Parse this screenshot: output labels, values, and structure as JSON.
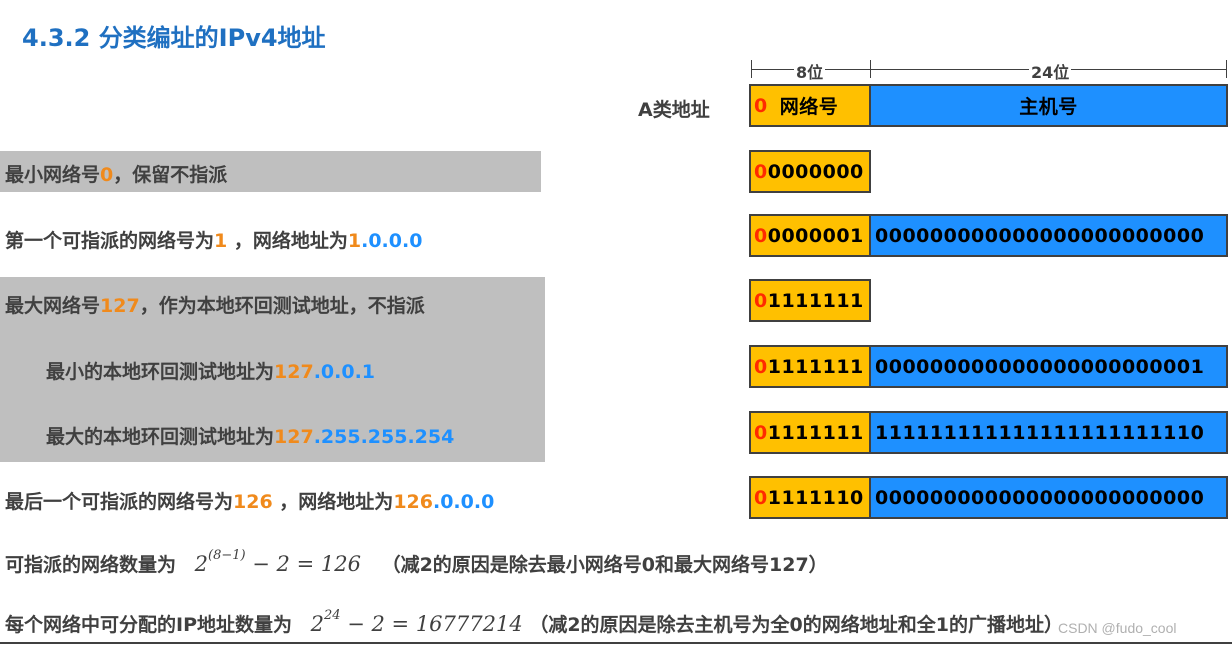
{
  "title": "4.3.2 分类编址的IPv4地址",
  "diagram": {
    "class_label": "A类地址",
    "width_net": "8位",
    "width_host": "24位",
    "header_net_zero": "0",
    "header_net_label": "网络号",
    "header_host_label": "主机号"
  },
  "rows": [
    {
      "net_first": "0",
      "net_rest": "0000000",
      "host": ""
    },
    {
      "net_first": "0",
      "net_rest": "0000001",
      "host": "000000000000000000000000"
    },
    {
      "net_first": "0",
      "net_rest": "1111111",
      "host": ""
    },
    {
      "net_first": "0",
      "net_rest": "1111111",
      "host": "000000000000000000000001"
    },
    {
      "net_first": "0",
      "net_rest": "1111111",
      "host": "111111111111111111111110"
    },
    {
      "net_first": "0",
      "net_rest": "1111110",
      "host": "000000000000000000000000"
    }
  ],
  "lines": {
    "l1_a": "最小网络号",
    "l1_b": "0",
    "l1_c": "，保留不指派",
    "l2_a": "第一个可指派的网络号为",
    "l2_b": "1",
    "l2_c": " ，网络地址为",
    "l2_d": "1",
    "l2_e": ".0.0.0",
    "l3_a": "最大网络号",
    "l3_b": "127",
    "l3_c": "，作为本地环回测试地址，不指派",
    "l4_a": "最小的本地环回测试地址为",
    "l4_b": "127",
    "l4_c": ".0.0.1",
    "l5_a": "最大的本地环回测试地址为",
    "l5_b": "127",
    "l5_c": ".255.255.254",
    "l6_a": "最后一个可指派的网络号为",
    "l6_b": "126",
    "l6_c": " ，网络地址为",
    "l6_d": "126",
    "l6_e": ".0.0.0"
  },
  "formula1": {
    "label": "可指派的网络数量为",
    "base": "2",
    "exp": "(8−1)",
    "rest": "− 2 = 126",
    "note": "（减2的原因是除去最小网络号0和最大网络号127）"
  },
  "formula2": {
    "label": "每个网络中可分配的IP地址数量为",
    "base": "2",
    "exp": "24",
    "rest": "− 2 = 16777214",
    "note": "（减2的原因是除去主机号为全0的网络地址和全1的广播地址）"
  },
  "watermark": "CSDN @fudo_cool",
  "colors": {
    "title": "#1f70c1",
    "orange": "#f08a1c",
    "blue": "#1e90ff",
    "net_fill": "#ffc000",
    "highlight": "#bfbfbf"
  }
}
